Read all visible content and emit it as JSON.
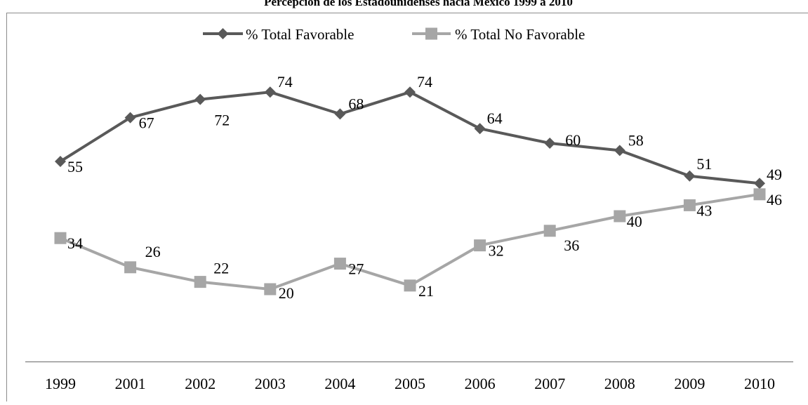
{
  "chart_data": {
    "type": "line",
    "title": "Percepción de los Estadounidenses hacia México 1999 a 2010",
    "xlabel": "",
    "ylabel": "",
    "categories": [
      "1999",
      "2001",
      "2002",
      "2003",
      "2004",
      "2005",
      "2006",
      "2007",
      "2008",
      "2009",
      "2010"
    ],
    "ylim": [
      0,
      80
    ],
    "grid": false,
    "legend_position": "top",
    "series": [
      {
        "name": "% Total Favorable",
        "values": [
          55,
          67,
          72,
          74,
          68,
          74,
          64,
          60,
          58,
          51,
          49
        ],
        "color": "#595959",
        "marker": "diamond"
      },
      {
        "name": "% Total No Favorable",
        "values": [
          34,
          26,
          22,
          20,
          27,
          21,
          32,
          36,
          40,
          43,
          46
        ],
        "color": "#a6a6a6",
        "marker": "square"
      }
    ]
  }
}
